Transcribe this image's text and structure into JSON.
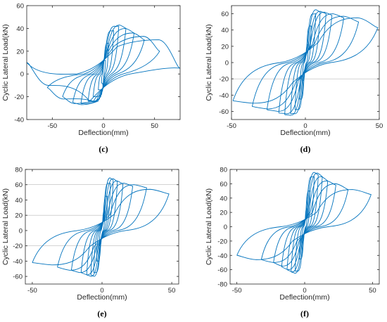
{
  "style": {
    "series_color": "#0072BD",
    "axis_color": "#262626",
    "reference_line_color": "#b9b9b9"
  },
  "chart_data": [
    {
      "panel": "(c)",
      "type": "line",
      "xlabel": "Deflection(mm)",
      "ylabel": "Cyclic Lateral Load(kN)",
      "xlim": [
        -75,
        75
      ],
      "ylim": [
        -40,
        60
      ],
      "xticks": [
        -50,
        0,
        50
      ],
      "yticks": [
        -40,
        -20,
        0,
        20,
        40,
        60
      ],
      "reference_lines_y": [],
      "series": [
        {
          "cycles": [
            {
              "amp_pos": 2,
              "amp_neg": -2,
              "peak_pos": 12,
              "peak_neg": -8,
              "y_unload_pos": 6,
              "y_unload_neg": -3,
              "y_end_pos": 12,
              "y_end_neg": -8,
              "yield": 12
            },
            {
              "amp_pos": 5,
              "amp_neg": -5,
              "peak_pos": 27,
              "peak_neg": -14,
              "y_unload_pos": 12,
              "y_unload_neg": -6,
              "y_end_pos": 27,
              "y_end_neg": -14,
              "yield": 15
            },
            {
              "amp_pos": 10,
              "amp_neg": -10,
              "peak_pos": 38,
              "peak_neg": -20,
              "y_unload_pos": 20,
              "y_unload_neg": -8,
              "y_end_pos": 38,
              "y_end_neg": -20,
              "yield": 18
            },
            {
              "amp_pos": 15,
              "amp_neg": -15,
              "peak_pos": 42,
              "peak_neg": -24,
              "y_unload_pos": 24,
              "y_unload_neg": -10,
              "y_end_pos": 42,
              "y_end_neg": -24,
              "yield": 20
            },
            {
              "amp_pos": 22,
              "amp_neg": -22,
              "peak_pos": 43,
              "peak_neg": -26,
              "y_unload_pos": 26,
              "y_unload_neg": -11,
              "y_end_pos": 40,
              "y_end_neg": -26,
              "yield": 22
            },
            {
              "amp_pos": 30,
              "amp_neg": -30,
              "peak_pos": 40,
              "peak_neg": -27,
              "y_unload_pos": 27,
              "y_unload_neg": -12,
              "y_end_pos": 36,
              "y_end_neg": -25,
              "yield": 24
            },
            {
              "amp_pos": 40,
              "amp_neg": -40,
              "peak_pos": 36,
              "peak_neg": -26,
              "y_unload_pos": 26,
              "y_unload_neg": -11,
              "y_end_pos": 30,
              "y_end_neg": -20,
              "yield": 24
            },
            {
              "amp_pos": 55,
              "amp_neg": -55,
              "peak_pos": 33,
              "peak_neg": -22,
              "y_unload_pos": 25,
              "y_unload_neg": -10,
              "y_end_pos": 20,
              "y_end_neg": -12,
              "yield": 24
            },
            {
              "amp_pos": 75,
              "amp_neg": -75,
              "peak_pos": 30,
              "peak_neg": -10,
              "y_unload_pos": 22,
              "y_unload_neg": -5,
              "y_end_pos": 5,
              "y_end_neg": 10,
              "yield": 24
            }
          ]
        }
      ]
    },
    {
      "panel": "(d)",
      "type": "line",
      "xlabel": "Deflection(mm)",
      "ylabel": "Cyclic Lateral Load(kN)",
      "xlim": [
        -50,
        50
      ],
      "ylim": [
        -70,
        70
      ],
      "xticks": [
        -50,
        0,
        50
      ],
      "yticks": [
        -60,
        -40,
        -20,
        0,
        20,
        40,
        60
      ],
      "reference_lines_y": [
        -20
      ],
      "series": [
        {
          "cycles": [
            {
              "amp_pos": 2,
              "amp_neg": -2,
              "peak_pos": 22,
              "peak_neg": -22,
              "y_unload_pos": 5,
              "y_unload_neg": -5,
              "y_end_pos": 22,
              "y_end_neg": -22,
              "yield": 8
            },
            {
              "amp_pos": 4,
              "amp_neg": -4,
              "peak_pos": 45,
              "peak_neg": -45,
              "y_unload_pos": 10,
              "y_unload_neg": -10,
              "y_end_pos": 45,
              "y_end_neg": -45,
              "yield": 10
            },
            {
              "amp_pos": 7,
              "amp_neg": -7,
              "peak_pos": 60,
              "peak_neg": -58,
              "y_unload_pos": 14,
              "y_unload_neg": -14,
              "y_end_pos": 60,
              "y_end_neg": -58,
              "yield": 13
            },
            {
              "amp_pos": 10,
              "amp_neg": -10,
              "peak_pos": 65,
              "peak_neg": -63,
              "y_unload_pos": 16,
              "y_unload_neg": -16,
              "y_end_pos": 62,
              "y_end_neg": -63,
              "yield": 15
            },
            {
              "amp_pos": 14,
              "amp_neg": -14,
              "peak_pos": 63,
              "peak_neg": -65,
              "y_unload_pos": 18,
              "y_unload_neg": -18,
              "y_end_pos": 60,
              "y_end_neg": -64,
              "yield": 18
            },
            {
              "amp_pos": 18,
              "amp_neg": -18,
              "peak_pos": 62,
              "peak_neg": -63,
              "y_unload_pos": 20,
              "y_unload_neg": -20,
              "y_end_pos": 58,
              "y_end_neg": -62,
              "yield": 20
            },
            {
              "amp_pos": 26,
              "amp_neg": -26,
              "peak_pos": 60,
              "peak_neg": -60,
              "y_unload_pos": 22,
              "y_unload_neg": -22,
              "y_end_pos": 55,
              "y_end_neg": -58,
              "yield": 22
            },
            {
              "amp_pos": 36,
              "amp_neg": -36,
              "peak_pos": 57,
              "peak_neg": -57,
              "y_unload_pos": 24,
              "y_unload_neg": -24,
              "y_end_pos": 50,
              "y_end_neg": -54,
              "yield": 24
            },
            {
              "amp_pos": 49,
              "amp_neg": -49,
              "peak_pos": 55,
              "peak_neg": -50,
              "y_unload_pos": 25,
              "y_unload_neg": -25,
              "y_end_pos": 43,
              "y_end_neg": -47,
              "yield": 25
            }
          ]
        }
      ]
    },
    {
      "panel": "(e)",
      "type": "line",
      "xlabel": "Deflection(mm)",
      "ylabel": "Cyclic Lateral Load(kN)",
      "xlim": [
        -55,
        55
      ],
      "ylim": [
        -70,
        80
      ],
      "xticks": [
        -50,
        0,
        50
      ],
      "yticks": [
        -60,
        -40,
        -20,
        0,
        20,
        40,
        60,
        80
      ],
      "reference_lines_y": [
        60,
        20,
        -20
      ],
      "series": [
        {
          "cycles": [
            {
              "amp_pos": 2,
              "amp_neg": -2,
              "peak_pos": 25,
              "peak_neg": -20,
              "y_unload_pos": 6,
              "y_unload_neg": -5,
              "y_end_pos": 25,
              "y_end_neg": -20,
              "yield": 8
            },
            {
              "amp_pos": 4,
              "amp_neg": -4,
              "peak_pos": 45,
              "peak_neg": -40,
              "y_unload_pos": 12,
              "y_unload_neg": -10,
              "y_end_pos": 45,
              "y_end_neg": -40,
              "yield": 10
            },
            {
              "amp_pos": 6,
              "amp_neg": -6,
              "peak_pos": 62,
              "peak_neg": -55,
              "y_unload_pos": 15,
              "y_unload_neg": -14,
              "y_end_pos": 62,
              "y_end_neg": -55,
              "yield": 13
            },
            {
              "amp_pos": 8,
              "amp_neg": -8,
              "peak_pos": 69,
              "peak_neg": -60,
              "y_unload_pos": 18,
              "y_unload_neg": -16,
              "y_end_pos": 66,
              "y_end_neg": -58,
              "yield": 16
            },
            {
              "amp_pos": 11,
              "amp_neg": -11,
              "peak_pos": 68,
              "peak_neg": -60,
              "y_unload_pos": 20,
              "y_unload_neg": -18,
              "y_end_pos": 64,
              "y_end_neg": -58,
              "yield": 18
            },
            {
              "amp_pos": 15,
              "amp_neg": -15,
              "peak_pos": 65,
              "peak_neg": -58,
              "y_unload_pos": 22,
              "y_unload_neg": -20,
              "y_end_pos": 61,
              "y_end_neg": -55,
              "yield": 20
            },
            {
              "amp_pos": 22,
              "amp_neg": -22,
              "peak_pos": 62,
              "peak_neg": -55,
              "y_unload_pos": 22,
              "y_unload_neg": -21,
              "y_end_pos": 58,
              "y_end_neg": -52,
              "yield": 21
            },
            {
              "amp_pos": 32,
              "amp_neg": -32,
              "peak_pos": 60,
              "peak_neg": -52,
              "y_unload_pos": 22,
              "y_unload_neg": -22,
              "y_end_pos": 56,
              "y_end_neg": -48,
              "yield": 21
            },
            {
              "amp_pos": 48,
              "amp_neg": -50,
              "peak_pos": 54,
              "peak_neg": -45,
              "y_unload_pos": 21,
              "y_unload_neg": -22,
              "y_end_pos": 48,
              "y_end_neg": -42,
              "yield": 21
            }
          ]
        }
      ]
    },
    {
      "panel": "(f)",
      "type": "line",
      "xlabel": "Deflection(mm)",
      "ylabel": "Cyclic Lateral Load(kN)",
      "xlim": [
        -55,
        55
      ],
      "ylim": [
        -80,
        80
      ],
      "xticks": [
        -50,
        0,
        50
      ],
      "yticks": [
        -80,
        -60,
        -40,
        -20,
        0,
        20,
        40,
        60,
        80
      ],
      "reference_lines_y": [],
      "series": [
        {
          "cycles": [
            {
              "amp_pos": 2,
              "amp_neg": -2,
              "peak_pos": 25,
              "peak_neg": -22,
              "y_unload_pos": 5,
              "y_unload_neg": -5,
              "y_end_pos": 25,
              "y_end_neg": -22,
              "yield": 8
            },
            {
              "amp_pos": 4,
              "amp_neg": -4,
              "peak_pos": 50,
              "peak_neg": -45,
              "y_unload_pos": 10,
              "y_unload_neg": -10,
              "y_end_pos": 50,
              "y_end_neg": -45,
              "yield": 10
            },
            {
              "amp_pos": 7,
              "amp_neg": -7,
              "peak_pos": 70,
              "peak_neg": -62,
              "y_unload_pos": 14,
              "y_unload_neg": -14,
              "y_end_pos": 70,
              "y_end_neg": -62,
              "yield": 13
            },
            {
              "amp_pos": 10,
              "amp_neg": -10,
              "peak_pos": 76,
              "peak_neg": -65,
              "y_unload_pos": 16,
              "y_unload_neg": -16,
              "y_end_pos": 72,
              "y_end_neg": -63,
              "yield": 15
            },
            {
              "amp_pos": 13,
              "amp_neg": -13,
              "peak_pos": 75,
              "peak_neg": -63,
              "y_unload_pos": 18,
              "y_unload_neg": -18,
              "y_end_pos": 70,
              "y_end_neg": -60,
              "yield": 17
            },
            {
              "amp_pos": 17,
              "amp_neg": -17,
              "peak_pos": 70,
              "peak_neg": -60,
              "y_unload_pos": 19,
              "y_unload_neg": -19,
              "y_end_pos": 64,
              "y_end_neg": -56,
              "yield": 19
            },
            {
              "amp_pos": 23,
              "amp_neg": -23,
              "peak_pos": 64,
              "peak_neg": -55,
              "y_unload_pos": 20,
              "y_unload_neg": -20,
              "y_end_pos": 58,
              "y_end_neg": -50,
              "yield": 20
            },
            {
              "amp_pos": 32,
              "amp_neg": -32,
              "peak_pos": 60,
              "peak_neg": -50,
              "y_unload_pos": 20,
              "y_unload_neg": -20,
              "y_end_pos": 52,
              "y_end_neg": -46,
              "yield": 20
            },
            {
              "amp_pos": 49,
              "amp_neg": -50,
              "peak_pos": 52,
              "peak_neg": -46,
              "y_unload_pos": 20,
              "y_unload_neg": -20,
              "y_end_pos": 45,
              "y_end_neg": -40,
              "yield": 20
            }
          ]
        }
      ]
    }
  ]
}
